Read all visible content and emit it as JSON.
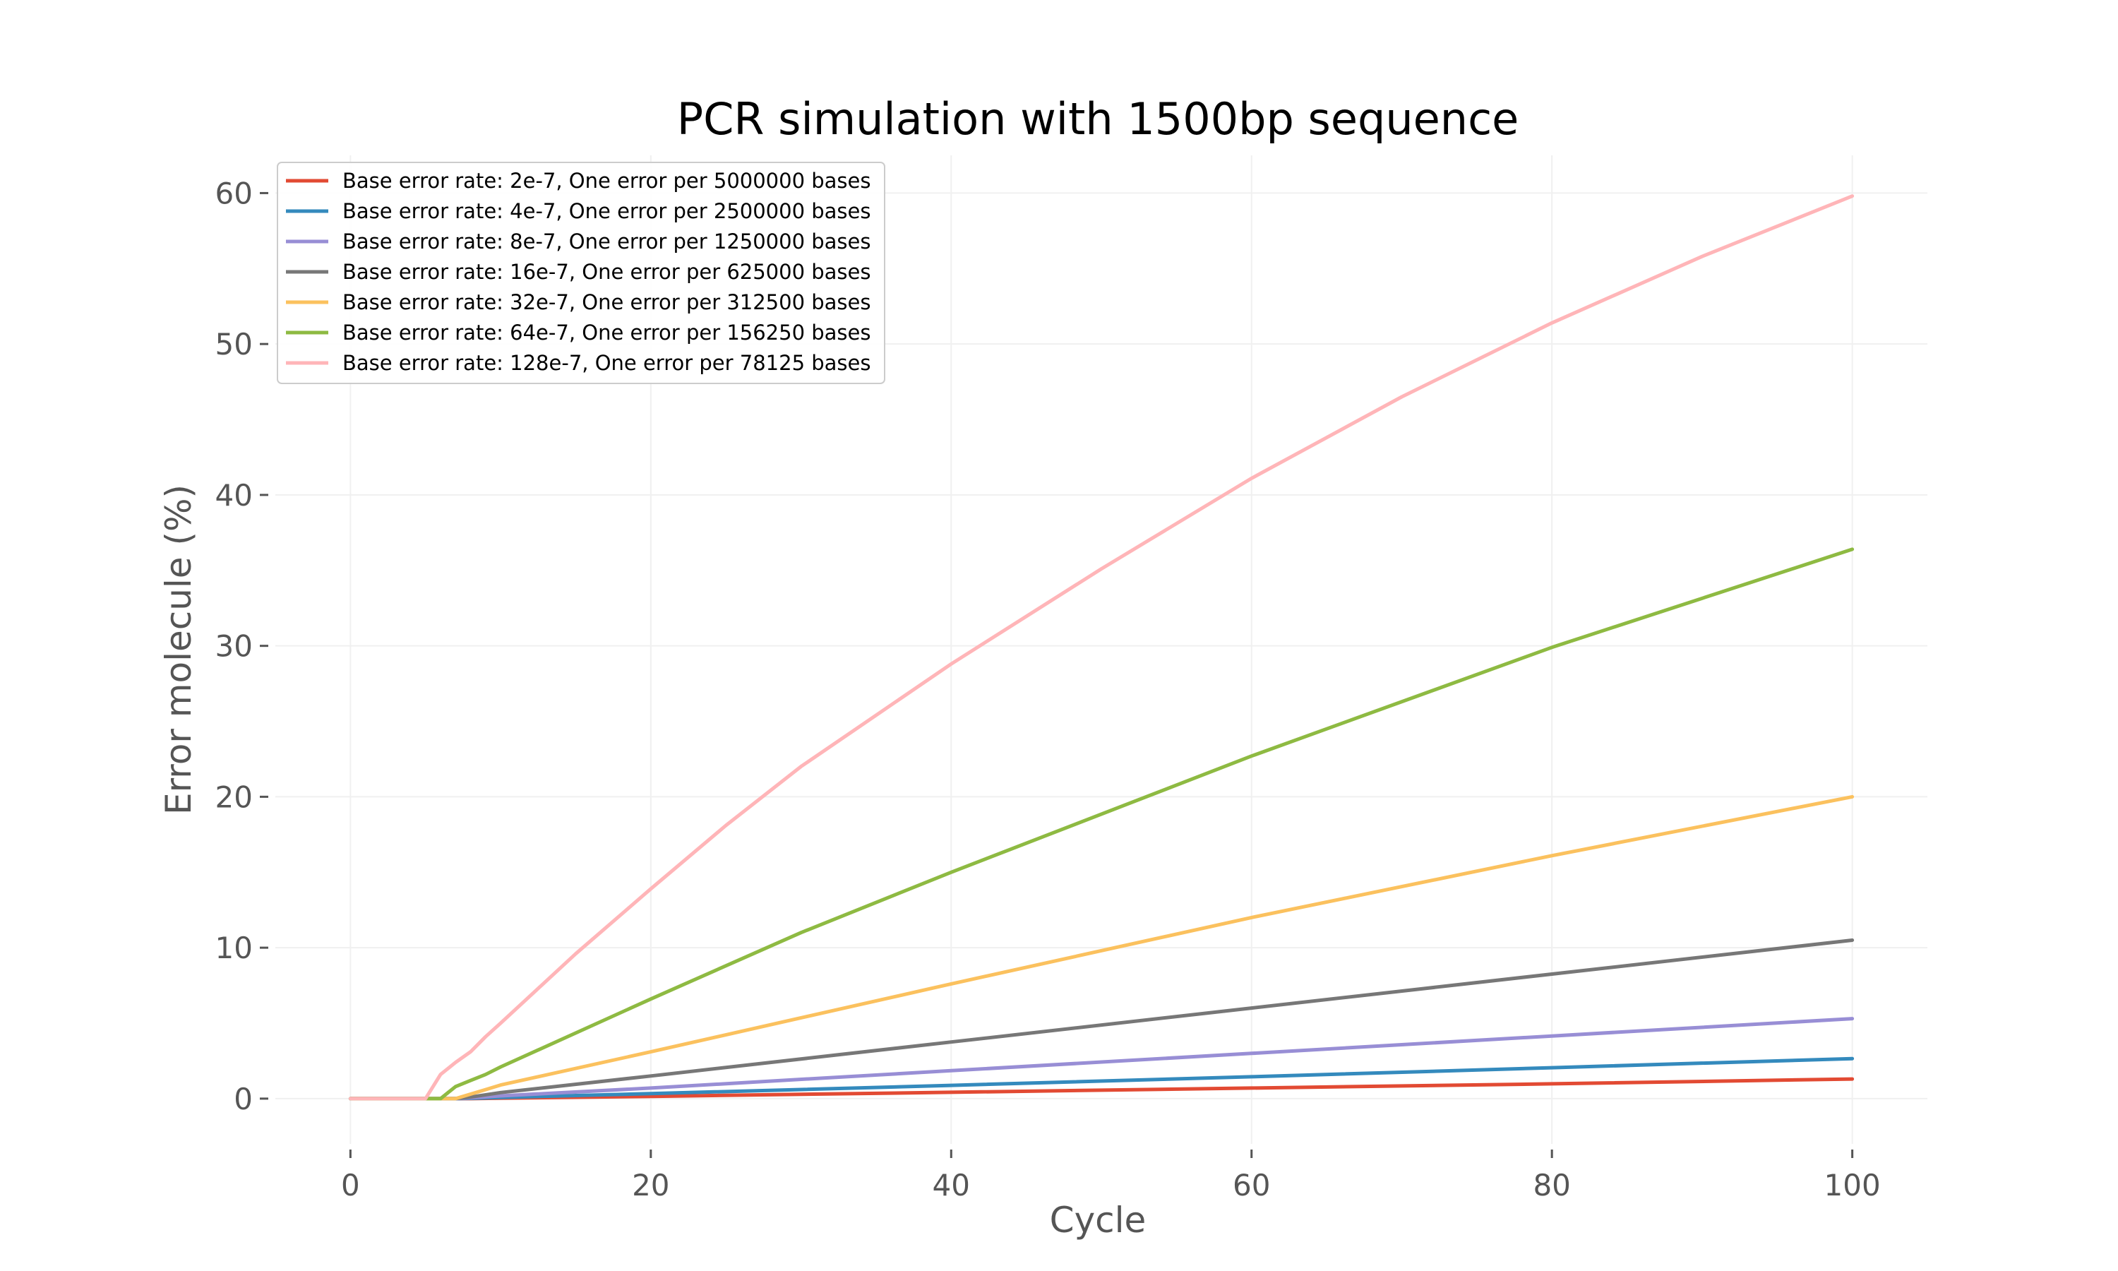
{
  "chart_data": {
    "type": "line",
    "title": "PCR simulation with 1500bp sequence",
    "xlabel": "Cycle",
    "ylabel": "Error molecule (%)",
    "xlim": [
      -5,
      105
    ],
    "ylim": [
      -3,
      62.5
    ],
    "x_ticks": [
      0,
      20,
      40,
      60,
      80,
      100
    ],
    "y_ticks": [
      0,
      10,
      20,
      30,
      40,
      50,
      60
    ],
    "grid": true,
    "legend_position": "top-left",
    "series": [
      {
        "name": "Base error rate: 2e-7, One error per 5000000 bases",
        "color": "#E24A33",
        "x": [
          0,
          5,
          6,
          7,
          8,
          10,
          20,
          40,
          60,
          80,
          100
        ],
        "y": [
          0,
          0,
          0,
          0,
          0,
          0.03,
          0.15,
          0.42,
          0.7,
          0.98,
          1.3
        ]
      },
      {
        "name": "Base error rate: 4e-7, One error per 2500000 bases",
        "color": "#348ABD",
        "x": [
          0,
          5,
          6,
          7,
          8,
          10,
          20,
          40,
          60,
          80,
          100
        ],
        "y": [
          0,
          0,
          0,
          0,
          0.02,
          0.08,
          0.33,
          0.88,
          1.45,
          2.05,
          2.65
        ]
      },
      {
        "name": "Base error rate: 8e-7, One error per 1250000 bases",
        "color": "#988ED5",
        "x": [
          0,
          5,
          6,
          7,
          8,
          10,
          20,
          40,
          60,
          80,
          100
        ],
        "y": [
          0,
          0,
          0,
          0,
          0.05,
          0.18,
          0.7,
          1.85,
          3.0,
          4.15,
          5.3
        ]
      },
      {
        "name": "Base error rate: 16e-7, One error per 625000 bases",
        "color": "#777777",
        "x": [
          0,
          5,
          6,
          7,
          8,
          10,
          20,
          40,
          60,
          80,
          100
        ],
        "y": [
          0,
          0,
          0,
          0,
          0.1,
          0.4,
          1.5,
          3.75,
          6.0,
          8.25,
          10.5
        ]
      },
      {
        "name": "Base error rate: 32e-7, One error per 312500 bases",
        "color": "#FBC15E",
        "x": [
          0,
          5,
          6,
          7,
          8,
          9,
          10,
          20,
          40,
          60,
          80,
          100
        ],
        "y": [
          0,
          0,
          0,
          0,
          0.3,
          0.6,
          0.9,
          3.1,
          7.6,
          12.0,
          16.1,
          20.0
        ]
      },
      {
        "name": "Base error rate: 64e-7, One error per 156250 bases",
        "color": "#8EBA42",
        "x": [
          0,
          5,
          6,
          7,
          8,
          9,
          10,
          20,
          30,
          40,
          60,
          80,
          100
        ],
        "y": [
          0,
          0,
          0,
          0.8,
          1.2,
          1.6,
          2.1,
          6.6,
          11.0,
          15.0,
          22.7,
          29.9,
          36.4
        ]
      },
      {
        "name": "Base error rate: 128e-7, One error per 78125 bases",
        "color": "#FFB5B8",
        "x": [
          0,
          5,
          6,
          7,
          8,
          9,
          10,
          15,
          20,
          25,
          30,
          40,
          50,
          60,
          70,
          80,
          90,
          100
        ],
        "y": [
          0,
          0,
          1.6,
          2.4,
          3.1,
          4.1,
          5.0,
          9.6,
          13.9,
          18.1,
          22.0,
          28.8,
          35.1,
          41.1,
          46.5,
          51.4,
          55.8,
          59.8
        ]
      }
    ]
  }
}
